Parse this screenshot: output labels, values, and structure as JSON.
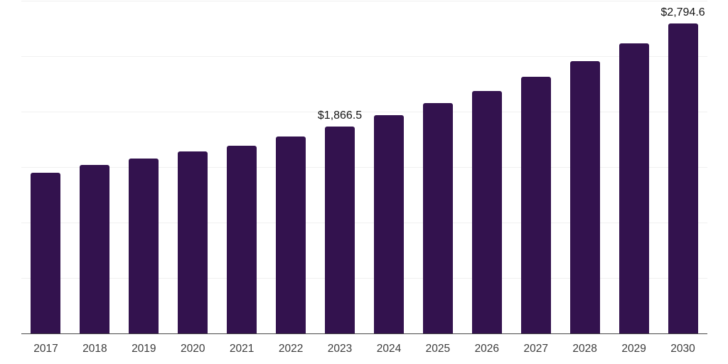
{
  "chart_data": {
    "type": "bar",
    "title": "",
    "xlabel": "",
    "ylabel": "",
    "categories": [
      "2017",
      "2018",
      "2019",
      "2020",
      "2021",
      "2022",
      "2023",
      "2024",
      "2025",
      "2026",
      "2027",
      "2028",
      "2029",
      "2030"
    ],
    "values": [
      1450,
      1520,
      1577,
      1643,
      1690,
      1775,
      1866.5,
      1965,
      2078,
      2187,
      2315,
      2458,
      2613,
      2794.6
    ],
    "value_labels": {
      "2023": "$1,866.5",
      "2030": "$2,794.6"
    },
    "ylim": [
      0,
      3000
    ],
    "gridline_step": 500,
    "grid": true,
    "legend_position": "none",
    "y_axis_labels_visible": false,
    "colors": {
      "bar": "#33124e",
      "gridline": "#f0f0f0",
      "axis_line": "#4b4b4b",
      "tick_label": "#3c3c3c",
      "value_label": "#141414",
      "background": "#ffffff"
    }
  }
}
